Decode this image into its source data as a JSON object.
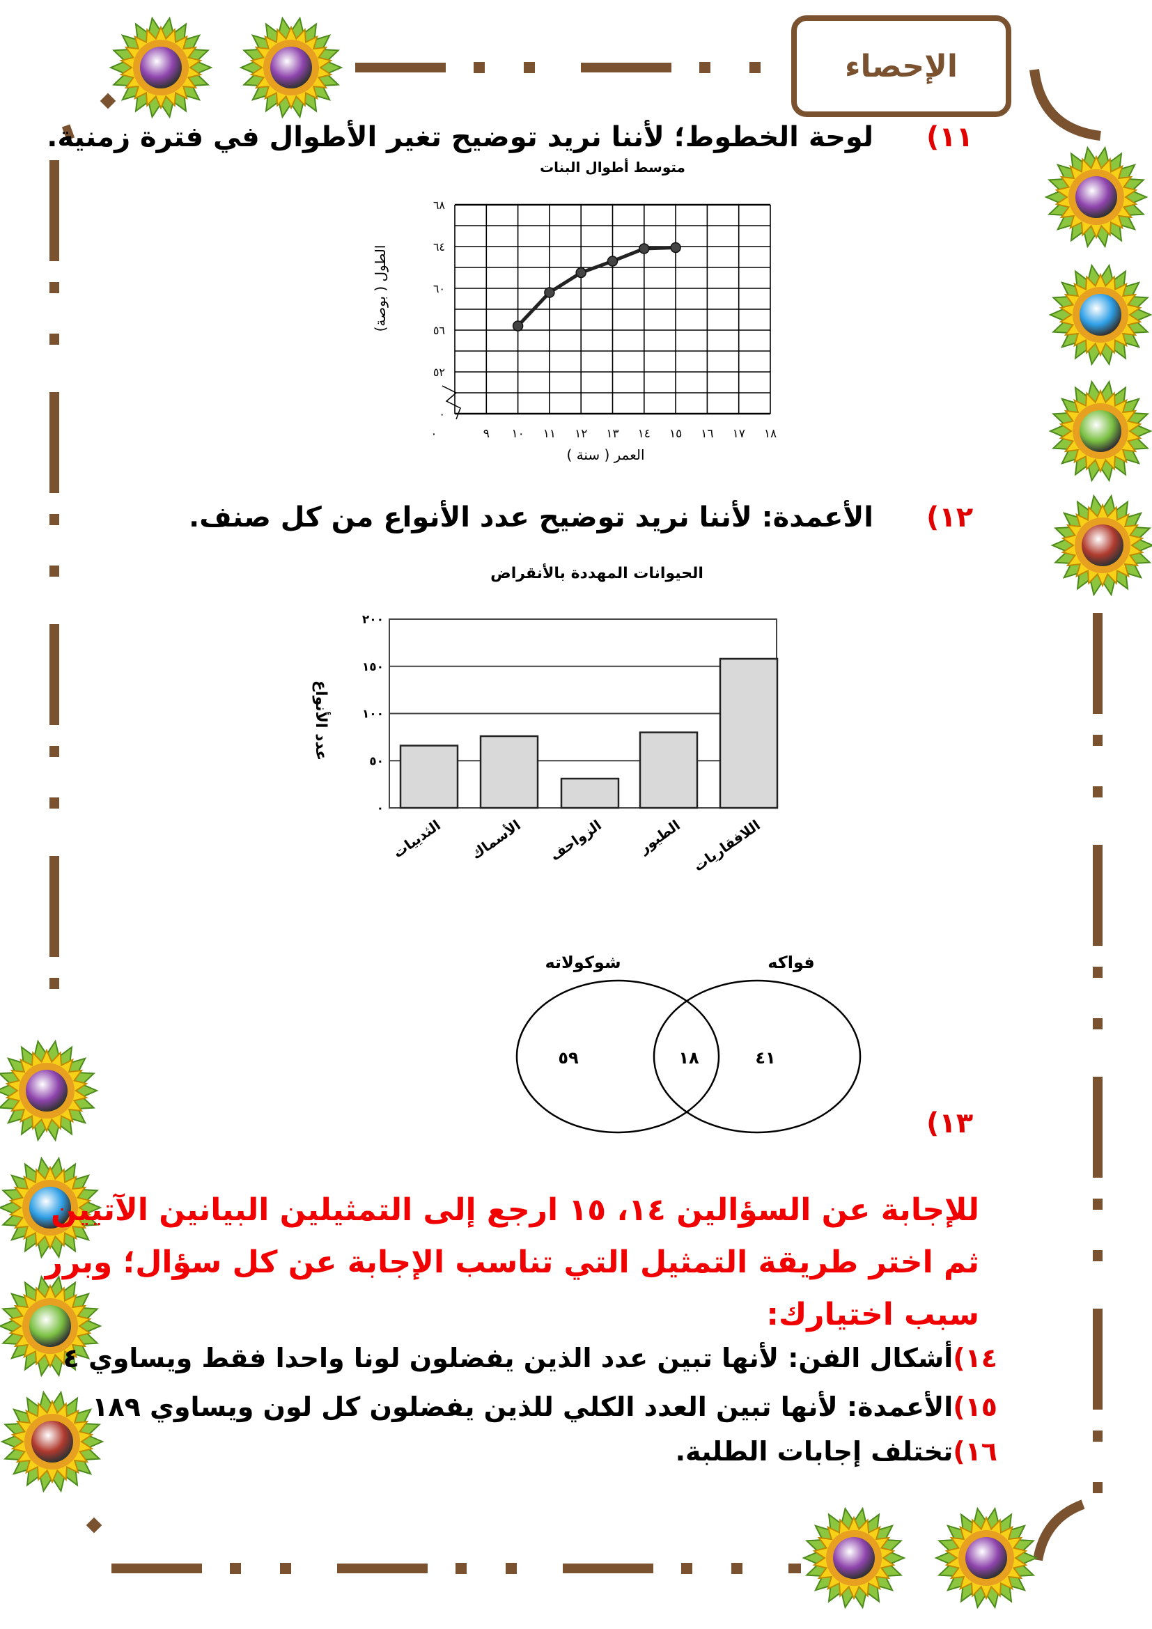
{
  "header": {
    "title": "الإحصاء"
  },
  "colors": {
    "border": "#7a5230",
    "accent_red": "#f00000",
    "bar_fill": "#d9d9d9",
    "flower_petal": "#8cc63f",
    "flower_petal_tip": "#f7d117"
  },
  "decorations": {
    "flower_icon": "flower-ornament-icon",
    "flower_centers": [
      "#8e44ad",
      "#8e44ad",
      "#8e44ad",
      "#2e9fe6",
      "#7bc043",
      "#b03a2e",
      "#8e44ad",
      "#2e9fe6",
      "#7bc043",
      "#b03a2e",
      "#8e44ad",
      "#8e44ad"
    ]
  },
  "q11": {
    "number": "(١١",
    "text": "لوحة الخطوط؛ لأننا نريد توضيح تغير الأطوال في فترة زمنية."
  },
  "q12": {
    "number": "(١٢",
    "text": "الأعمدة: لأننا نريد توضيح عدد الأنواع من كل صنف."
  },
  "q13": {
    "number": "(١٣"
  },
  "instructions": {
    "line1": "للإجابة عن السؤالين ١٤، ١٥ ارجع إلى التمثيلين البيانين الآتيين",
    "line2": "ثم اختر طريقة التمثيل التي تناسب الإجابة عن كل سؤال؛ وبرر",
    "line3": "سبب اختيارك:"
  },
  "answers": [
    {
      "number": "١٤)",
      "text": "أشكال الفن: لأنها تبين عدد الذين يفضلون لونا واحدا فقط ويساوي ٤"
    },
    {
      "number": "١٥)",
      "text": "الأعمدة: لأنها تبين العدد الكلي للذين يفضلون كل لون ويساوي ١٨٩"
    },
    {
      "number": "١٦)",
      "text": "تختلف إجابات الطلبة."
    }
  ],
  "chart_data": [
    {
      "type": "line",
      "title": "متوسط أطوال البنات",
      "xlabel": "العمر ( سنة )",
      "ylabel": "الطول ( بوصة)",
      "x": [
        10,
        11,
        12,
        13,
        14,
        15
      ],
      "y": [
        56.4,
        59.6,
        61.5,
        62.6,
        63.8,
        63.9
      ],
      "xlim": [
        8,
        18
      ],
      "ylim": [
        50,
        68
      ],
      "axis_break": true,
      "grid": true,
      "x_tick_labels": [
        "٠",
        "٩",
        "١٠",
        "١١",
        "١٢",
        "١٣",
        "١٤",
        "١٥",
        "١٦",
        "١٧",
        "١٨"
      ],
      "y_tick_labels": [
        "٦٨",
        "٦٤",
        "٦٠",
        "٥٦",
        "٥٢",
        "٠"
      ]
    },
    {
      "type": "bar",
      "title": "الحيوانات المهددة بالأنقراض",
      "ylabel": "عدد الأنواع",
      "categories": [
        "الثدييات",
        "الأسماك",
        "الزواحف",
        "الطيور",
        "اللافقاريات"
      ],
      "values": [
        66,
        76,
        31,
        80,
        158
      ],
      "ylim": [
        0,
        200
      ],
      "grid": true,
      "y_tick_labels": [
        "٢٠٠",
        "١٥٠",
        "١٠٠",
        "٥٠",
        "٠"
      ]
    },
    {
      "type": "venn",
      "sets": [
        {
          "name": "شوكولاته",
          "only": "٥٩"
        },
        {
          "name": "فواكه",
          "only": "٤١"
        }
      ],
      "intersection": "١٨"
    }
  ]
}
